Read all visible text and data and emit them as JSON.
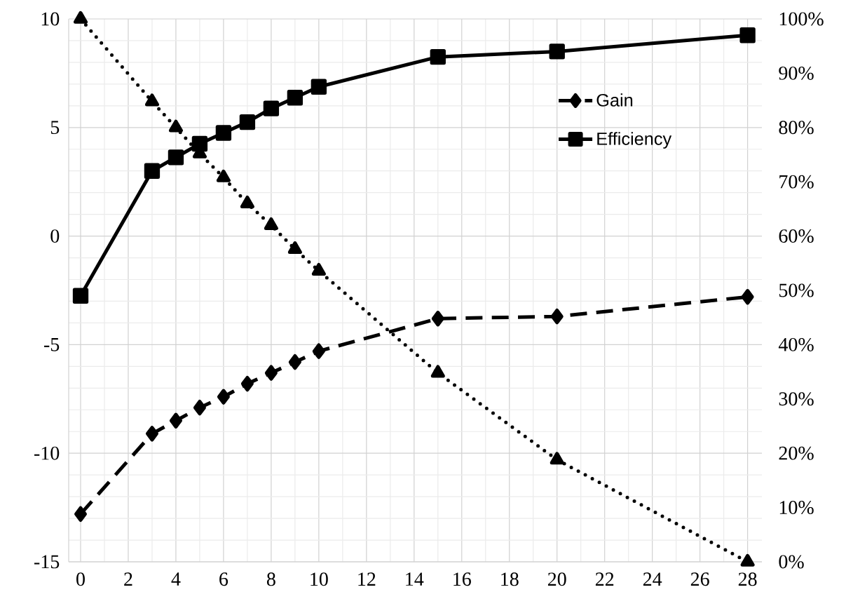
{
  "chart_data": {
    "type": "line",
    "x": [
      0,
      3,
      4,
      5,
      6,
      7,
      8,
      9,
      10,
      15,
      20,
      28
    ],
    "series": [
      {
        "name": "Gain",
        "color": "#000000",
        "axis": "y",
        "marker": "diamond",
        "line_style": "dashed",
        "values": [
          -12.8,
          -9.1,
          -8.5,
          -7.9,
          -7.4,
          -6.8,
          -6.3,
          -5.8,
          -5.3,
          -3.8,
          -3.7,
          -2.8
        ]
      },
      {
        "name": "Efficiency",
        "color": "#000000",
        "axis": "y2",
        "marker": "square",
        "line_style": "solid",
        "values": [
          49,
          72,
          74.5,
          77,
          79,
          81,
          83.5,
          85.5,
          87.5,
          93,
          94,
          97
        ]
      },
      {
        "color": "#000000",
        "axis": "y",
        "marker": "triangle",
        "line_style": "dotted",
        "values": [
          10,
          6.2,
          5,
          3.8,
          2.7,
          1.5,
          0.5,
          -0.6,
          -1.6,
          -6.3,
          -10.3,
          -15
        ]
      }
    ],
    "xlim": [
      -0.5,
      28.6
    ],
    "xticks": [
      0,
      2,
      4,
      6,
      8,
      10,
      12,
      14,
      16,
      18,
      20,
      22,
      24,
      26,
      28
    ],
    "ylim": [
      -15,
      10
    ],
    "yticks": [
      -15,
      -10,
      -5,
      0,
      5,
      10
    ],
    "y2lim": [
      0,
      100
    ],
    "y2ticks": [
      {
        "value": 0,
        "label": "0%"
      },
      {
        "value": 10,
        "label": "10%"
      },
      {
        "value": 20,
        "label": "20%"
      },
      {
        "value": 30,
        "label": "30%"
      },
      {
        "value": 40,
        "label": "40%"
      },
      {
        "value": 50,
        "label": "50%"
      },
      {
        "value": 60,
        "label": "60%"
      },
      {
        "value": 70,
        "label": "70%"
      },
      {
        "value": 80,
        "label": "80%"
      },
      {
        "value": 90,
        "label": "90%"
      },
      {
        "value": 100,
        "label": "100%"
      }
    ],
    "grid": true,
    "legend": "top right"
  }
}
